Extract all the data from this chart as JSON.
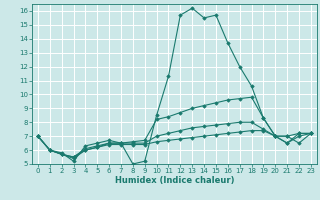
{
  "xlabel": "Humidex (Indice chaleur)",
  "bg_color": "#cce8e8",
  "grid_color": "#ffffff",
  "line_color": "#1a7a6e",
  "xlim": [
    -0.5,
    23.5
  ],
  "ylim": [
    5,
    16.5
  ],
  "xticks": [
    0,
    1,
    2,
    3,
    4,
    5,
    6,
    7,
    8,
    9,
    10,
    11,
    12,
    13,
    14,
    15,
    16,
    17,
    18,
    19,
    20,
    21,
    22,
    23
  ],
  "yticks": [
    5,
    6,
    7,
    8,
    9,
    10,
    11,
    12,
    13,
    14,
    15,
    16
  ],
  "lines": [
    {
      "x": [
        0,
        1,
        2,
        3,
        4,
        5,
        6,
        7,
        8,
        9,
        10,
        11,
        12,
        13,
        14,
        15,
        16,
        17,
        18,
        19,
        20,
        21,
        22,
        23
      ],
      "y": [
        7.0,
        6.0,
        5.8,
        5.2,
        6.3,
        6.5,
        6.7,
        6.5,
        5.0,
        5.2,
        8.5,
        11.3,
        15.7,
        16.2,
        15.5,
        15.7,
        13.7,
        12.0,
        10.6,
        8.3,
        7.0,
        6.5,
        7.2,
        7.2
      ]
    },
    {
      "x": [
        0,
        1,
        2,
        3,
        4,
        5,
        6,
        7,
        8,
        9,
        10,
        11,
        12,
        13,
        14,
        15,
        16,
        17,
        18,
        19,
        20,
        21,
        22,
        23
      ],
      "y": [
        7.0,
        6.0,
        5.7,
        5.4,
        6.0,
        6.2,
        6.5,
        6.5,
        6.6,
        6.7,
        8.2,
        8.4,
        8.7,
        9.0,
        9.2,
        9.4,
        9.6,
        9.7,
        9.8,
        8.3,
        7.0,
        7.0,
        6.5,
        7.2
      ]
    },
    {
      "x": [
        0,
        1,
        2,
        3,
        4,
        5,
        6,
        7,
        8,
        9,
        10,
        11,
        12,
        13,
        14,
        15,
        16,
        17,
        18,
        19,
        20,
        21,
        22,
        23
      ],
      "y": [
        7.0,
        6.0,
        5.7,
        5.5,
        6.1,
        6.3,
        6.5,
        6.5,
        6.5,
        6.5,
        7.0,
        7.2,
        7.4,
        7.6,
        7.7,
        7.8,
        7.9,
        8.0,
        8.0,
        7.5,
        7.0,
        7.0,
        7.2,
        7.2
      ]
    },
    {
      "x": [
        0,
        1,
        2,
        3,
        4,
        5,
        6,
        7,
        8,
        9,
        10,
        11,
        12,
        13,
        14,
        15,
        16,
        17,
        18,
        19,
        20,
        21,
        22,
        23
      ],
      "y": [
        7.0,
        6.0,
        5.7,
        5.5,
        6.0,
        6.2,
        6.4,
        6.4,
        6.4,
        6.4,
        6.6,
        6.7,
        6.8,
        6.9,
        7.0,
        7.1,
        7.2,
        7.3,
        7.4,
        7.4,
        7.0,
        6.5,
        7.0,
        7.2
      ]
    }
  ]
}
